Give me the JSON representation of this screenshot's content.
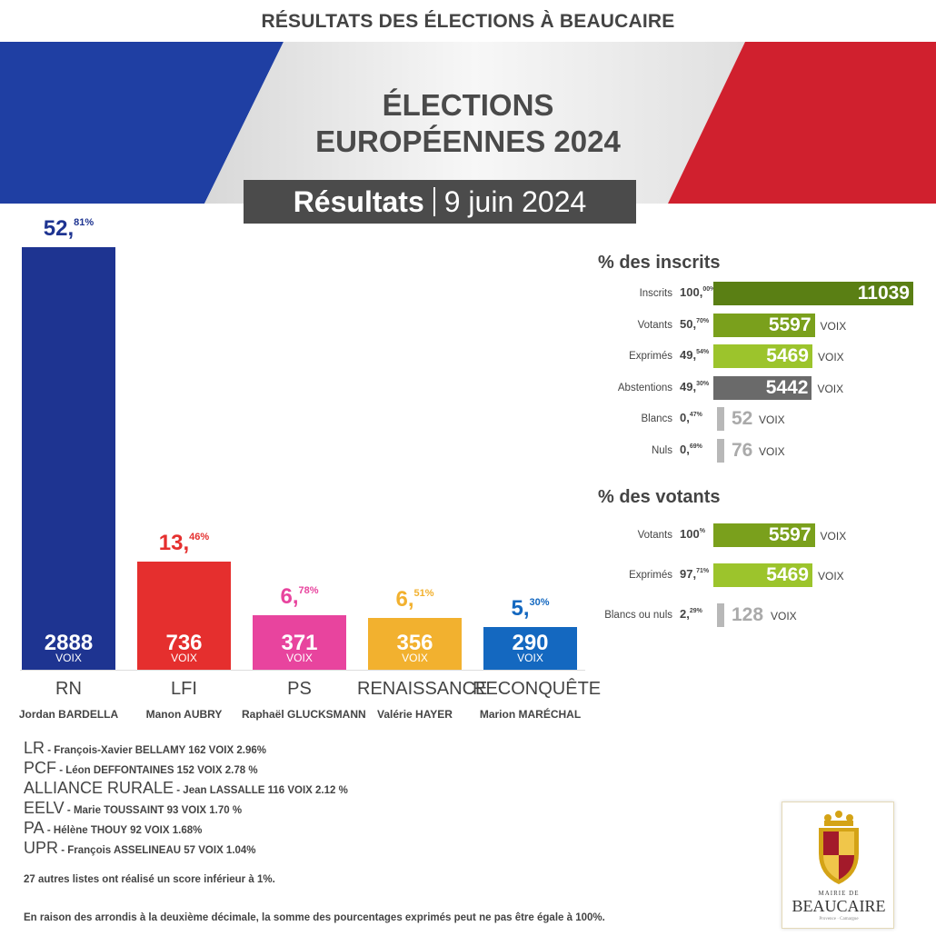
{
  "header": {
    "top_title": "RÉSULTATS DES ÉLECTIONS À BEAUCAIRE",
    "election_line1": "ÉLECTIONS",
    "election_line2": "EUROPÉENNES 2024",
    "results_label": "Résultats",
    "results_date": "9 juin 2024"
  },
  "colors": {
    "flag_blue": "#1f3fa3",
    "flag_red": "#d0202e",
    "RN": "#1e3491",
    "LFI": "#e52f2e",
    "PS": "#e8449e",
    "RENAISSANCE": "#f2b12f",
    "RECONQUETE": "#1468c0",
    "inscrits": "#5a7f14",
    "votants": "#7aa01c",
    "exprimes": "#9cc42c",
    "abstentions": "#6a6a6a",
    "blank_null": "#b8b8b8"
  },
  "chart_data": [
    {
      "type": "bar",
      "categories": [
        "RN",
        "LFI",
        "PS",
        "RENAISSANCE",
        "RECONQUÊTE"
      ],
      "candidates": [
        "Jordan BARDELLA",
        "Manon AUBRY",
        "Raphaël GLUCKSMANN",
        "Valérie HAYER",
        "Marion MARÉCHAL"
      ],
      "pct_int": [
        "52,",
        "13,",
        "6,",
        "6,",
        "5,"
      ],
      "pct_dec": [
        "81%",
        "46%",
        "78%",
        "51%",
        "30%"
      ],
      "percentages": [
        52.81,
        13.46,
        6.78,
        6.51,
        5.3
      ],
      "values": [
        2888,
        736,
        371,
        356,
        290
      ],
      "vote_label": "VOIX",
      "colors": [
        "#1e3491",
        "#e52f2e",
        "#e8449e",
        "#f2b12f",
        "#1468c0"
      ],
      "ylim": [
        0,
        2888
      ]
    },
    {
      "type": "bar",
      "title": "% des inscrits",
      "rows": [
        {
          "label": "Inscrits",
          "pct_int": "100,",
          "pct_dec": "00%",
          "value": 11039,
          "voix": "",
          "color": "#5a7f14",
          "small": false
        },
        {
          "label": "Votants",
          "pct_int": "50,",
          "pct_dec": "70%",
          "value": 5597,
          "voix": "VOIX",
          "color": "#7aa01c",
          "small": false
        },
        {
          "label": "Exprimés",
          "pct_int": "49,",
          "pct_dec": "54%",
          "value": 5469,
          "voix": "VOIX",
          "color": "#9cc42c",
          "small": false
        },
        {
          "label": "Abstentions",
          "pct_int": "49,",
          "pct_dec": "30%",
          "value": 5442,
          "voix": "VOIX",
          "color": "#6a6a6a",
          "small": false
        },
        {
          "label": "Blancs",
          "pct_int": "0,",
          "pct_dec": "47%",
          "value": 52,
          "voix": "VOIX",
          "color": "#b8b8b8",
          "small": true
        },
        {
          "label": "Nuls",
          "pct_int": "0,",
          "pct_dec": "69%",
          "value": 76,
          "voix": "VOIX",
          "color": "#b8b8b8",
          "small": true
        }
      ],
      "xlim": [
        0,
        11039
      ]
    },
    {
      "type": "bar",
      "title": "% des votants",
      "rows": [
        {
          "label": "Votants",
          "pct_int": "100",
          "pct_dec": "%",
          "value": 5597,
          "voix": "VOIX",
          "color": "#7aa01c",
          "small": false
        },
        {
          "label": "Exprimés",
          "pct_int": "97,",
          "pct_dec": "71%",
          "value": 5469,
          "voix": "VOIX",
          "color": "#9cc42c",
          "small": false
        },
        {
          "label": "Blancs ou nuls",
          "pct_int": "2,",
          "pct_dec": "29%",
          "value": 128,
          "voix": "VOIX",
          "color": "#b8b8b8",
          "small": true
        }
      ],
      "xlim": [
        0,
        11039
      ]
    }
  ],
  "other_lists": [
    {
      "abbr": "LR",
      "detail": "François-Xavier BELLAMY   162 VOIX  2.96%"
    },
    {
      "abbr": "PCF",
      "detail": "Léon DEFFONTAINES  152 VOIX  2.78 %"
    },
    {
      "abbr": "ALLIANCE RURALE",
      "detail": "Jean LASSALLE   116 VOIX  2.12 %"
    },
    {
      "abbr": "EELV",
      "detail": "Marie TOUSSAINT  93 VOIX  1.70 %"
    },
    {
      "abbr": "PA",
      "detail": "Hélène THOUY  92 VOIX  1.68%"
    },
    {
      "abbr": "UPR",
      "detail": "François ASSELINEAU   57 VOIX  1.04%"
    }
  ],
  "notes": {
    "others": "27 autres listes ont réalisé un score inférieur à 1%.",
    "rounding": "En raison des arrondis à la deuxième décimale, la somme des pourcentages exprimés peut ne pas être égale à 100%."
  },
  "logo": {
    "small": "MAIRIE DE",
    "big": "BEAUCAIRE",
    "tag": "Provence · Camargue"
  }
}
